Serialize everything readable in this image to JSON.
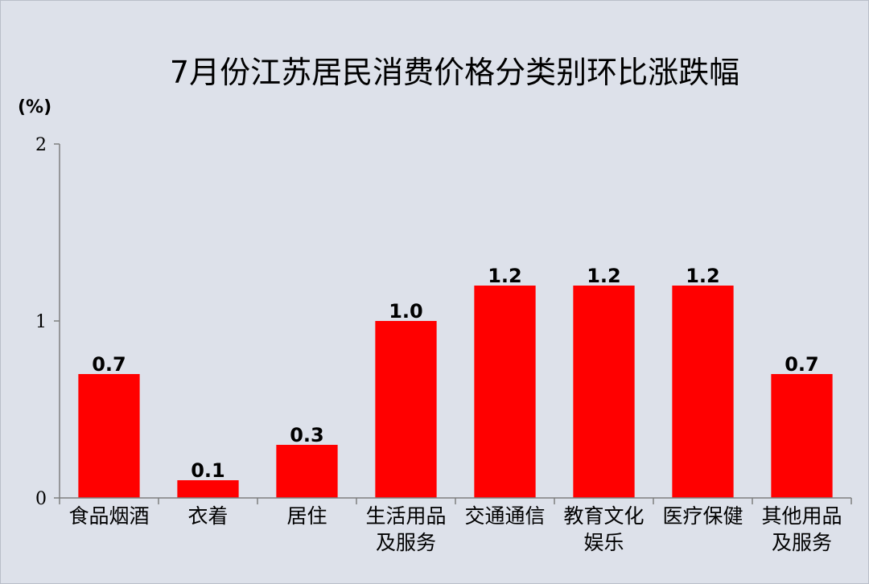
{
  "chart_data": {
    "type": "bar",
    "title": "7月份江苏居民消费价格分类别环比涨跌幅",
    "unit_label": "(%)",
    "categories": [
      [
        "食品烟酒"
      ],
      [
        "衣着"
      ],
      [
        "居住"
      ],
      [
        "生活用品",
        "及服务"
      ],
      [
        "交通通信"
      ],
      [
        "教育文化",
        "娱乐"
      ],
      [
        "医疗保健"
      ],
      [
        "其他用品",
        "及服务"
      ]
    ],
    "values": [
      0.7,
      0.1,
      0.3,
      1.0,
      1.2,
      1.2,
      1.2,
      0.7
    ],
    "data_labels": [
      "0.7",
      "0.1",
      "0.3",
      "1.0",
      "1.2",
      "1.2",
      "1.2",
      "0.7"
    ],
    "ylim": [
      0,
      2
    ],
    "yticks": [
      "0",
      "1",
      "2"
    ],
    "grid": false,
    "legend": "none",
    "colors": {
      "bar": "#ff0000",
      "background": "#dde1ea",
      "axis": "#7f7f7f"
    }
  }
}
